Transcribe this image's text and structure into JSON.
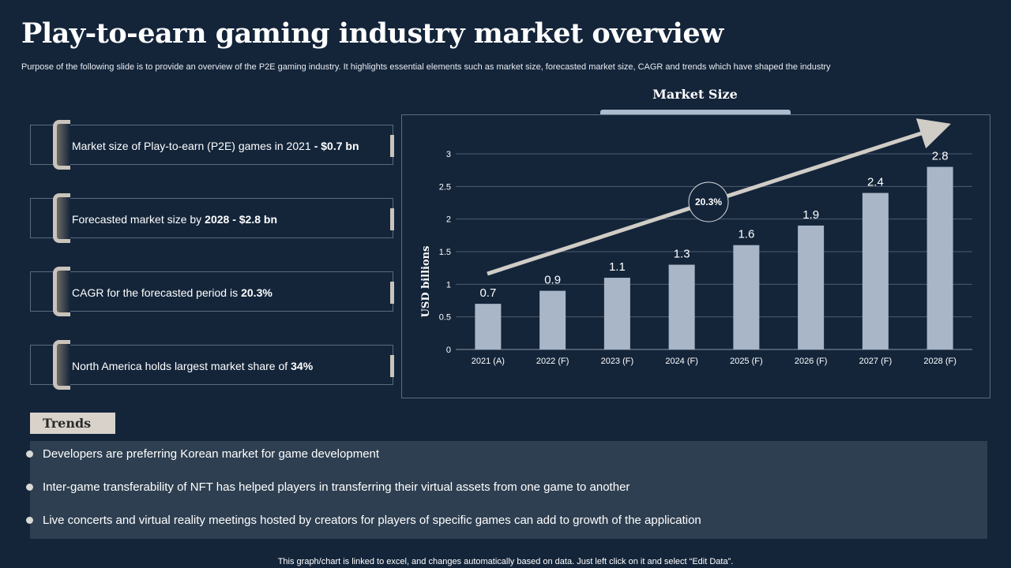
{
  "page": {
    "title": "Play-to-earn gaming industry market overview",
    "subtitle": "Purpose of the following slide is to provide an overview of the P2E gaming industry. It highlights essential elements such as market size, forecasted market size, CAGR and trends which have shaped the industry",
    "footer": "This graph/chart is linked to excel, and changes automatically based on data. Just left click on it and select “Edit Data”."
  },
  "cards": [
    {
      "text": "Market size of Play-to-earn (P2E) games in 2021",
      "bold": "- $0.7 bn"
    },
    {
      "text": "Forecasted market size by",
      "bold": "2028 - $2.8 bn"
    },
    {
      "text": "CAGR for the forecasted period is",
      "bold": "20.3%"
    },
    {
      "text": "North America holds largest market share of",
      "bold": "34%"
    }
  ],
  "chart_data": {
    "type": "bar",
    "title": "Market Size",
    "categories": [
      "2021 (A)",
      "2022 (F)",
      "2023 (F)",
      "2024 (F)",
      "2025 (F)",
      "2026 (F)",
      "2027 (F)",
      "2028 (F)"
    ],
    "values": [
      0.7,
      0.9,
      1.1,
      1.3,
      1.6,
      1.9,
      2.4,
      2.8
    ],
    "value_labels": [
      "0.7",
      "0.9",
      "1.1",
      "1.3",
      "1.6",
      "1.9",
      "2.4",
      "2.8"
    ],
    "xlabel": "",
    "ylabel": "USD billions",
    "ylim": [
      0,
      3
    ],
    "yticks": [
      "0",
      "0.5",
      "1",
      "1.5",
      "2",
      "2.5",
      "3"
    ],
    "annotation": "20.3%",
    "grid": true,
    "bar_color": "#a9b6c8"
  },
  "trends": {
    "label": "Trends",
    "items": [
      "Developers are preferring Korean market for game development",
      "Inter-game  transferability  of NFT has helped players in transferring their virtual assets from one game to another",
      "Live concerts and virtual reality  meetings hosted by creators for players of specific games can add to growth of the application"
    ]
  }
}
